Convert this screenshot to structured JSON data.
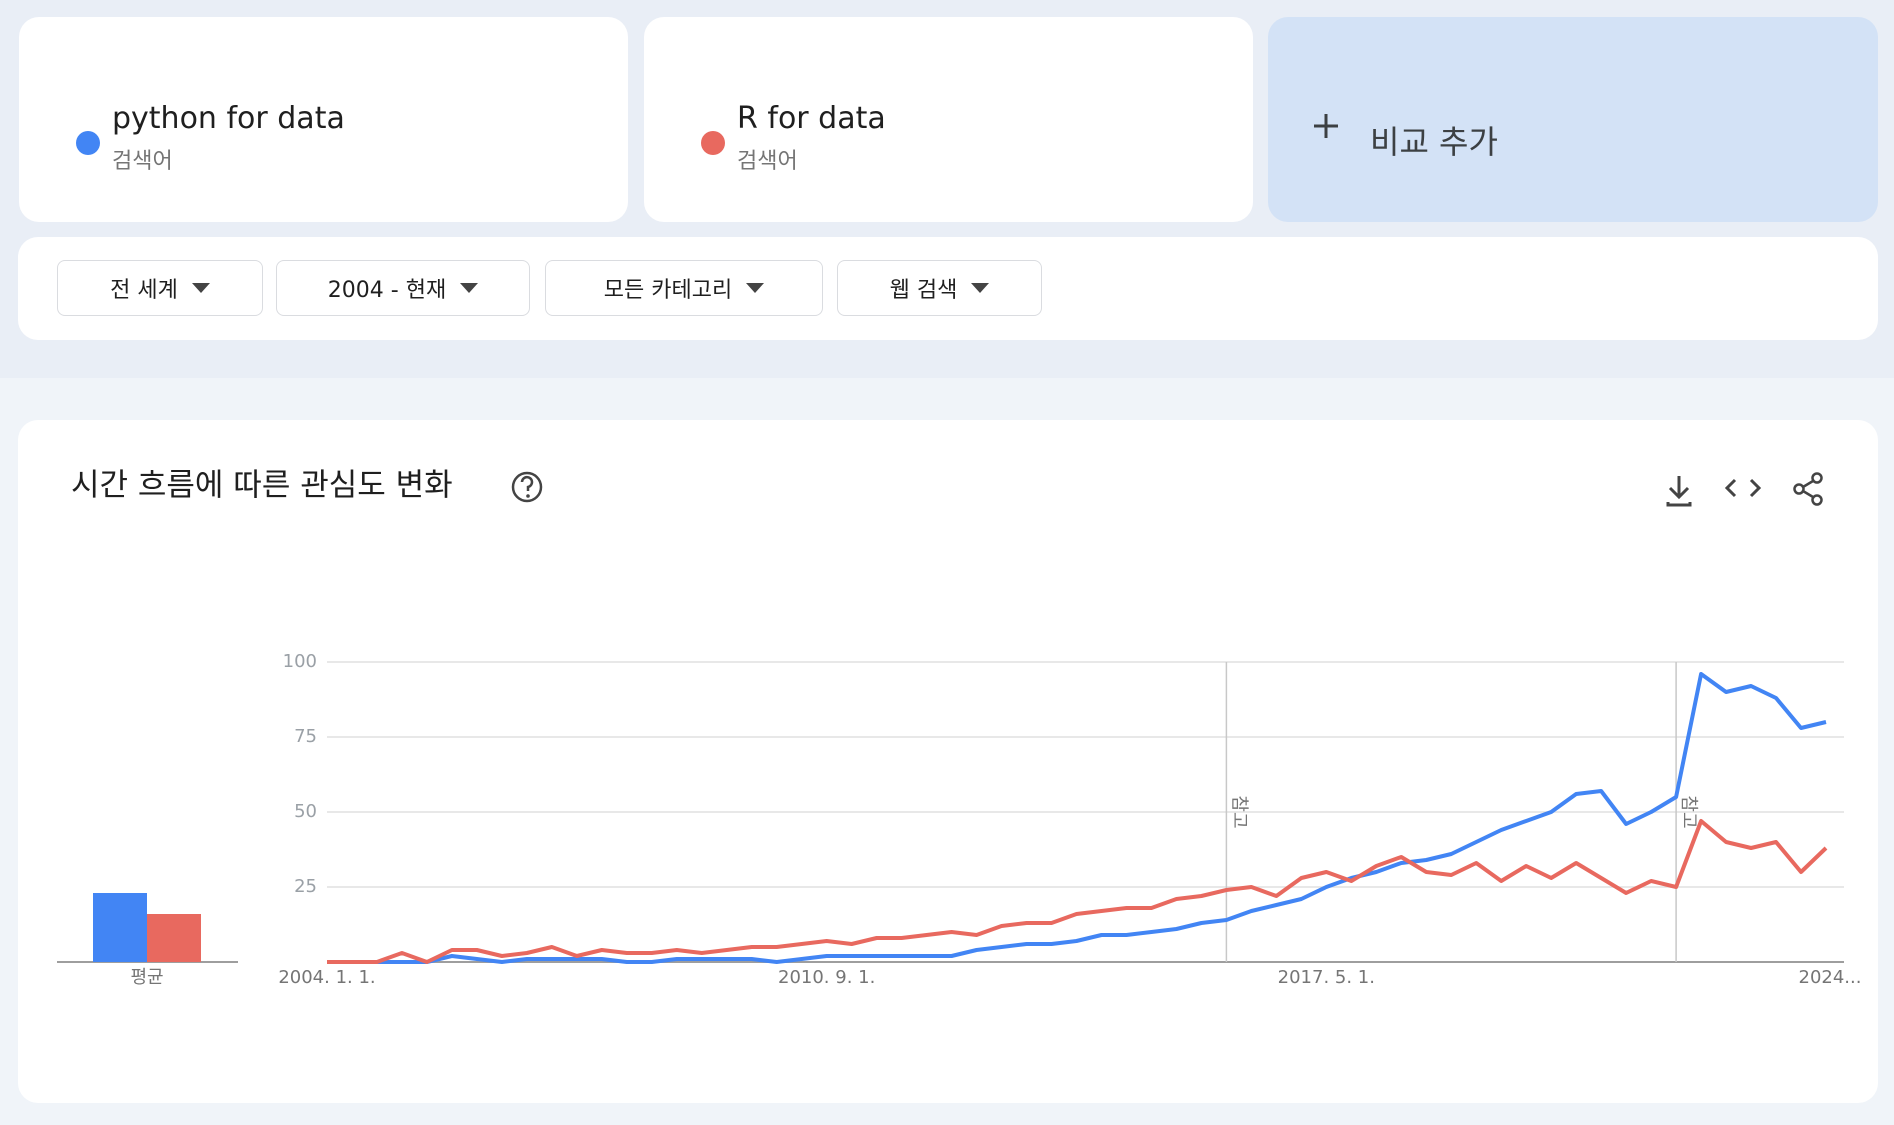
{
  "search_terms": [
    {
      "sublabel": "검색어"
    },
    {
      "sublabel": "검색어"
    }
  ],
  "add_compare": "비교 추가",
  "filters": [
    "전 세계",
    "2004 - 현재",
    "모든 카테고리",
    "웹 검색"
  ],
  "chart_data": {
    "type": "line",
    "title": "시간 흐름에 따른 관심도 변화",
    "categories": [
      "2004. 1. 1.",
      null,
      null,
      null,
      null,
      null,
      null,
      null,
      null,
      null,
      null,
      null,
      null,
      null,
      null,
      null,
      null,
      null,
      null,
      null,
      "2010. 9. 1.",
      null,
      null,
      null,
      null,
      null,
      null,
      null,
      null,
      null,
      null,
      null,
      null,
      null,
      null,
      null,
      null,
      null,
      null,
      null,
      "2017. 5. 1.",
      null,
      null,
      null,
      null,
      null,
      null,
      null,
      null,
      null,
      null,
      null,
      null,
      null,
      null,
      null,
      null,
      null,
      null,
      null,
      "2024..."
    ],
    "series": [
      {
        "name": "python for data",
        "color": "#4285f4",
        "average": 23,
        "values": [
          0,
          0,
          0,
          0,
          0,
          2,
          1,
          0,
          1,
          1,
          1,
          1,
          0,
          0,
          1,
          1,
          1,
          1,
          0,
          1,
          2,
          2,
          2,
          2,
          2,
          2,
          4,
          5,
          6,
          6,
          7,
          9,
          9,
          10,
          11,
          13,
          14,
          17,
          19,
          21,
          25,
          28,
          30,
          33,
          34,
          36,
          40,
          44,
          47,
          50,
          56,
          57,
          46,
          50,
          55,
          96,
          90,
          92,
          88,
          78,
          80
        ]
      },
      {
        "name": "R for data",
        "color": "#e8695f",
        "average": 16,
        "values": [
          0,
          0,
          0,
          3,
          0,
          4,
          4,
          2,
          3,
          5,
          2,
          4,
          3,
          3,
          4,
          3,
          4,
          5,
          5,
          6,
          7,
          6,
          8,
          8,
          9,
          10,
          9,
          12,
          13,
          13,
          16,
          17,
          18,
          18,
          21,
          22,
          24,
          25,
          22,
          28,
          30,
          27,
          32,
          35,
          30,
          29,
          33,
          27,
          32,
          28,
          33,
          28,
          23,
          27,
          25,
          47,
          40,
          38,
          40,
          30,
          38
        ]
      }
    ],
    "average_label": "평균",
    "ylim": [
      0,
      100
    ],
    "yticks": [
      25,
      50,
      75,
      100
    ],
    "grid": true,
    "annotations": [
      {
        "index": 36,
        "label": "참고"
      },
      {
        "index": 54,
        "label": "참고"
      }
    ]
  }
}
